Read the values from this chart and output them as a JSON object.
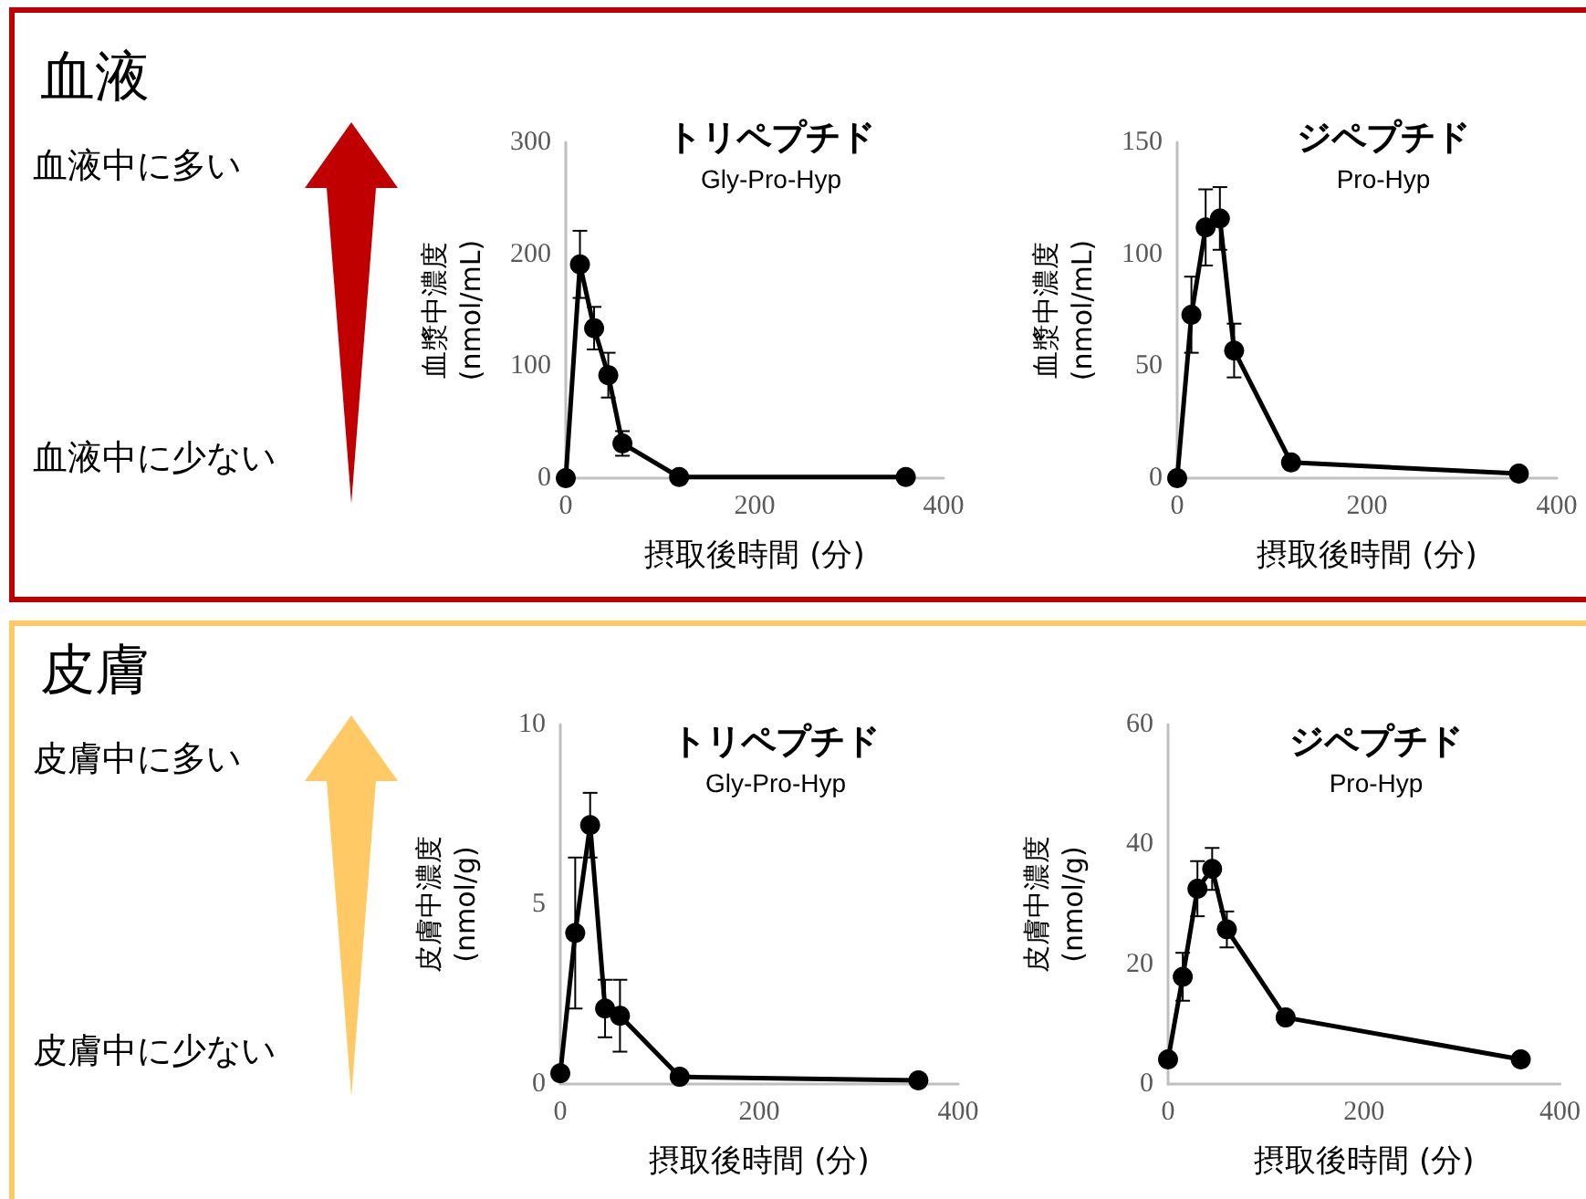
{
  "chart_data": [
    {
      "type": "line",
      "title": "トリペプチド",
      "subtitle": "Gly-Pro-Hyp",
      "xlabel": "摂取後時間 (分)",
      "ylabel": "血漿中濃度 (nmol/mL)",
      "annotations": [
        "血液",
        "血液中に多い",
        "血液中に少ない"
      ],
      "x": [
        0,
        15,
        30,
        45,
        60,
        120,
        360
      ],
      "series": [
        {
          "color": "#000000",
          "values": [
            0,
            191,
            134,
            92,
            31,
            1,
            1
          ],
          "errors": [
            null,
            30,
            19,
            20,
            11,
            null,
            null
          ]
        }
      ],
      "xlim": [
        0,
        400
      ],
      "xticks": [
        0,
        200,
        400
      ],
      "ylim": [
        0,
        300
      ],
      "yticks": [
        0,
        100,
        200,
        300
      ],
      "marker": "circle",
      "line_style": "solid"
    },
    {
      "type": "line",
      "title": "ジペプチド",
      "subtitle": "Pro-Hyp",
      "xlabel": "摂取後時間 (分)",
      "ylabel": "血漿中濃度 (nmol/mL)",
      "x": [
        0,
        15,
        30,
        45,
        60,
        120,
        360
      ],
      "series": [
        {
          "color": "#000000",
          "values": [
            0,
            73,
            112,
            116,
            57,
            7,
            2
          ],
          "errors": [
            null,
            17,
            17,
            14,
            12,
            null,
            null
          ]
        }
      ],
      "xlim": [
        0,
        400
      ],
      "xticks": [
        0,
        200,
        400
      ],
      "ylim": [
        0,
        150
      ],
      "yticks": [
        0,
        50,
        100,
        150
      ],
      "marker": "circle",
      "line_style": "solid"
    },
    {
      "type": "line",
      "title": "トリペプチド",
      "subtitle": "Gly-Pro-Hyp",
      "xlabel": "摂取後時間 (分)",
      "ylabel": "皮膚中濃度 (nmol/g)",
      "annotations": [
        "皮膚",
        "皮膚中に多い",
        "皮膚中に少ない"
      ],
      "x": [
        0,
        15,
        30,
        45,
        60,
        120,
        360
      ],
      "series": [
        {
          "color": "#000000",
          "values": [
            0.3,
            4.2,
            7.2,
            2.1,
            1.9,
            0.2,
            0.1
          ],
          "errors": [
            null,
            2.1,
            0.9,
            0.8,
            1.0,
            null,
            null
          ]
        }
      ],
      "xlim": [
        0,
        400
      ],
      "xticks": [
        0,
        200,
        400
      ],
      "ylim": [
        0,
        10
      ],
      "yticks": [
        0,
        5,
        10
      ],
      "marker": "circle",
      "line_style": "solid"
    },
    {
      "type": "line",
      "title": "ジペプチド",
      "subtitle": "Pro-Hyp",
      "xlabel": "摂取後時間 (分)",
      "ylabel": "皮膚中濃度 (nmol/g)",
      "x": [
        0,
        15,
        30,
        45,
        60,
        120,
        360
      ],
      "series": [
        {
          "color": "#000000",
          "values": [
            4.1,
            17.9,
            32.6,
            35.9,
            25.8,
            11.1,
            4.1
          ],
          "errors": [
            null,
            4,
            4.6,
            3.5,
            3,
            null,
            null
          ]
        }
      ],
      "xlim": [
        0,
        400
      ],
      "xticks": [
        0,
        200,
        400
      ],
      "ylim": [
        0,
        60
      ],
      "yticks": [
        0,
        20,
        40,
        60
      ],
      "marker": "circle",
      "line_style": "solid"
    }
  ]
}
